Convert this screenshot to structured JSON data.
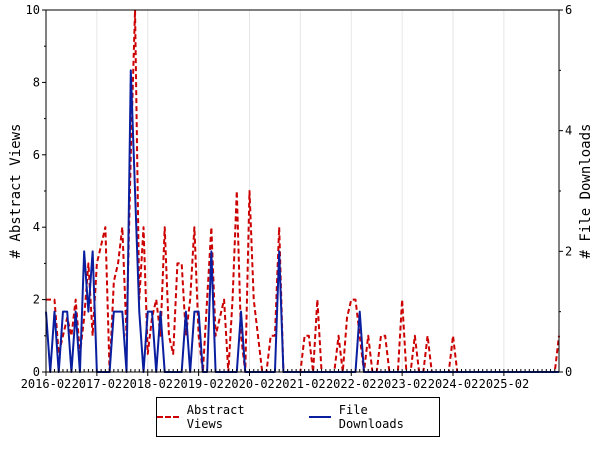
{
  "chart_data": {
    "type": "line",
    "title": "",
    "xlabel": "",
    "ylabel": "# Abstract Views",
    "y2label": "# File Downloads",
    "ylim": [
      0,
      10
    ],
    "y2lim": [
      0,
      6
    ],
    "yticks": [
      "0",
      "2",
      "4",
      "6",
      "8",
      "10"
    ],
    "y2ticks": [
      "0",
      "2",
      "4",
      "6"
    ],
    "xtick_labels": [
      "2016-02",
      "2017-02",
      "2018-02",
      "2019-02",
      "2020-02",
      "2021-02",
      "2022-02",
      "2023-02",
      "2024-02",
      "2025-02"
    ],
    "grid": "vertical",
    "legend_position": "bottom",
    "series": [
      {
        "name": "Abstract Views",
        "axis": "left",
        "color": "#cc0000",
        "style": "dashed",
        "points": [
          [
            "2016-02",
            2
          ],
          [
            "2016-03",
            2
          ],
          [
            "2016-04",
            2
          ],
          [
            "2016-05",
            0.5
          ],
          [
            "2016-06",
            1
          ],
          [
            "2016-07",
            1.5
          ],
          [
            "2016-08",
            1
          ],
          [
            "2016-09",
            2
          ],
          [
            "2016-10",
            0.5
          ],
          [
            "2016-11",
            1.5
          ],
          [
            "2016-12",
            3
          ],
          [
            "2017-01",
            1
          ],
          [
            "2017-02",
            3
          ],
          [
            "2017-03",
            3.5
          ],
          [
            "2017-04",
            4
          ],
          [
            "2017-05",
            0
          ],
          [
            "2017-06",
            2.5
          ],
          [
            "2017-07",
            3
          ],
          [
            "2017-08",
            4
          ],
          [
            "2017-09",
            1
          ],
          [
            "2017-10",
            6
          ],
          [
            "2017-11",
            10
          ],
          [
            "2017-12",
            2
          ],
          [
            "2018-01",
            4
          ],
          [
            "2018-02",
            0.5
          ],
          [
            "2018-03",
            1.5
          ],
          [
            "2018-04",
            2
          ],
          [
            "2018-05",
            1
          ],
          [
            "2018-06",
            4
          ],
          [
            "2018-07",
            1
          ],
          [
            "2018-08",
            0.5
          ],
          [
            "2018-09",
            3
          ],
          [
            "2018-10",
            3
          ],
          [
            "2018-11",
            1
          ],
          [
            "2018-12",
            2
          ],
          [
            "2019-01",
            4
          ],
          [
            "2019-02",
            1
          ],
          [
            "2019-03",
            0
          ],
          [
            "2019-04",
            2
          ],
          [
            "2019-05",
            4
          ],
          [
            "2019-06",
            1
          ],
          [
            "2019-07",
            1.5
          ],
          [
            "2019-08",
            2
          ],
          [
            "2019-09",
            0
          ],
          [
            "2019-10",
            2
          ],
          [
            "2019-11",
            5
          ],
          [
            "2019-12",
            1
          ],
          [
            "2020-01",
            0
          ],
          [
            "2020-02",
            5
          ],
          [
            "2020-03",
            2
          ],
          [
            "2020-04",
            1
          ],
          [
            "2020-05",
            0
          ],
          [
            "2020-06",
            0
          ],
          [
            "2020-07",
            1
          ],
          [
            "2020-08",
            1
          ],
          [
            "2020-09",
            4
          ],
          [
            "2020-10",
            0
          ],
          [
            "2020-11",
            0
          ],
          [
            "2020-12",
            0
          ],
          [
            "2021-01",
            0
          ],
          [
            "2021-02",
            0
          ],
          [
            "2021-03",
            1
          ],
          [
            "2021-04",
            1
          ],
          [
            "2021-05",
            0
          ],
          [
            "2021-06",
            2
          ],
          [
            "2021-07",
            0
          ],
          [
            "2021-08",
            0
          ],
          [
            "2021-09",
            0
          ],
          [
            "2021-10",
            0
          ],
          [
            "2021-11",
            1
          ],
          [
            "2021-12",
            0
          ],
          [
            "2022-01",
            1.5
          ],
          [
            "2022-02",
            2
          ],
          [
            "2022-03",
            2
          ],
          [
            "2022-04",
            1
          ],
          [
            "2022-05",
            0
          ],
          [
            "2022-06",
            1
          ],
          [
            "2022-07",
            0
          ],
          [
            "2022-08",
            0
          ],
          [
            "2022-09",
            1
          ],
          [
            "2022-10",
            1
          ],
          [
            "2022-11",
            0
          ],
          [
            "2022-12",
            0
          ],
          [
            "2023-01",
            0
          ],
          [
            "2023-02",
            2
          ],
          [
            "2023-03",
            0
          ],
          [
            "2023-04",
            0
          ],
          [
            "2023-05",
            1
          ],
          [
            "2023-06",
            0
          ],
          [
            "2023-07",
            0
          ],
          [
            "2023-08",
            1
          ],
          [
            "2023-09",
            0
          ],
          [
            "2023-10",
            0
          ],
          [
            "2023-11",
            0
          ],
          [
            "2023-12",
            0
          ],
          [
            "2024-01",
            0
          ],
          [
            "2024-02",
            1
          ],
          [
            "2024-03",
            0
          ],
          [
            "2024-04",
            0
          ],
          [
            "2024-05",
            0
          ],
          [
            "2024-06",
            0
          ],
          [
            "2024-07",
            0
          ],
          [
            "2024-08",
            0
          ],
          [
            "2024-09",
            0
          ],
          [
            "2024-10",
            0
          ],
          [
            "2024-11",
            0
          ],
          [
            "2024-12",
            0
          ],
          [
            "2025-01",
            0
          ],
          [
            "2025-02",
            0
          ],
          [
            "2025-03",
            0
          ],
          [
            "2025-04",
            0
          ],
          [
            "2025-05",
            0
          ],
          [
            "2025-06",
            0
          ],
          [
            "2025-07",
            0
          ],
          [
            "2025-08",
            0
          ],
          [
            "2025-09",
            0
          ],
          [
            "2025-10",
            0
          ],
          [
            "2025-11",
            0
          ],
          [
            "2025-12",
            0
          ],
          [
            "2026-01",
            0
          ],
          [
            "2026-02",
            0
          ],
          [
            "2026-03",
            1
          ]
        ]
      },
      {
        "name": "File Downloads",
        "axis": "right",
        "color": "#0a1fa0",
        "style": "solid",
        "points": [
          [
            "2016-02",
            1
          ],
          [
            "2016-03",
            0
          ],
          [
            "2016-04",
            1
          ],
          [
            "2016-05",
            0
          ],
          [
            "2016-06",
            1
          ],
          [
            "2016-07",
            1
          ],
          [
            "2016-08",
            0
          ],
          [
            "2016-09",
            1
          ],
          [
            "2016-10",
            0
          ],
          [
            "2016-11",
            2
          ],
          [
            "2016-12",
            1
          ],
          [
            "2017-01",
            2
          ],
          [
            "2017-02",
            0
          ],
          [
            "2017-03",
            0
          ],
          [
            "2017-04",
            0
          ],
          [
            "2017-05",
            0
          ],
          [
            "2017-06",
            1
          ],
          [
            "2017-07",
            1
          ],
          [
            "2017-08",
            1
          ],
          [
            "2017-09",
            0
          ],
          [
            "2017-10",
            5
          ],
          [
            "2017-11",
            3
          ],
          [
            "2017-12",
            1
          ],
          [
            "2018-01",
            0
          ],
          [
            "2018-02",
            1
          ],
          [
            "2018-03",
            1
          ],
          [
            "2018-04",
            0
          ],
          [
            "2018-05",
            1
          ],
          [
            "2018-06",
            0
          ],
          [
            "2018-07",
            0
          ],
          [
            "2018-08",
            0
          ],
          [
            "2018-09",
            0
          ],
          [
            "2018-10",
            0
          ],
          [
            "2018-11",
            1
          ],
          [
            "2018-12",
            0
          ],
          [
            "2019-01",
            1
          ],
          [
            "2019-02",
            1
          ],
          [
            "2019-03",
            0
          ],
          [
            "2019-04",
            0
          ],
          [
            "2019-05",
            2
          ],
          [
            "2019-06",
            0
          ],
          [
            "2019-07",
            0
          ],
          [
            "2019-08",
            0
          ],
          [
            "2019-09",
            0
          ],
          [
            "2019-10",
            0
          ],
          [
            "2019-11",
            0
          ],
          [
            "2019-12",
            1
          ],
          [
            "2020-01",
            0
          ],
          [
            "2020-02",
            0
          ],
          [
            "2020-03",
            0
          ],
          [
            "2020-04",
            0
          ],
          [
            "2020-05",
            0
          ],
          [
            "2020-06",
            0
          ],
          [
            "2020-07",
            0
          ],
          [
            "2020-08",
            0
          ],
          [
            "2020-09",
            2
          ],
          [
            "2020-10",
            0
          ],
          [
            "2020-11",
            0
          ],
          [
            "2020-12",
            0
          ],
          [
            "2021-01",
            0
          ],
          [
            "2021-02",
            0
          ],
          [
            "2021-03",
            0
          ],
          [
            "2021-04",
            0
          ],
          [
            "2021-05",
            0
          ],
          [
            "2021-06",
            0
          ],
          [
            "2021-07",
            0
          ],
          [
            "2021-08",
            0
          ],
          [
            "2021-09",
            0
          ],
          [
            "2021-10",
            0
          ],
          [
            "2021-11",
            0
          ],
          [
            "2021-12",
            0
          ],
          [
            "2022-01",
            0
          ],
          [
            "2022-02",
            0
          ],
          [
            "2022-03",
            0
          ],
          [
            "2022-04",
            1
          ],
          [
            "2022-05",
            0
          ],
          [
            "2022-06",
            0
          ],
          [
            "2022-07",
            0
          ],
          [
            "2022-08",
            0
          ],
          [
            "2022-09",
            0
          ],
          [
            "2022-10",
            0
          ],
          [
            "2022-11",
            0
          ],
          [
            "2022-12",
            0
          ],
          [
            "2023-01",
            0
          ],
          [
            "2023-02",
            0
          ],
          [
            "2023-03",
            0
          ],
          [
            "2023-04",
            0
          ],
          [
            "2023-05",
            0
          ],
          [
            "2023-06",
            0
          ],
          [
            "2023-07",
            0
          ],
          [
            "2023-08",
            0
          ],
          [
            "2023-09",
            0
          ],
          [
            "2023-10",
            0
          ],
          [
            "2023-11",
            0
          ],
          [
            "2023-12",
            0
          ],
          [
            "2024-01",
            0
          ],
          [
            "2024-02",
            0
          ],
          [
            "2024-03",
            0
          ],
          [
            "2024-04",
            0
          ],
          [
            "2024-05",
            0
          ],
          [
            "2024-06",
            0
          ],
          [
            "2024-07",
            0
          ],
          [
            "2024-08",
            0
          ],
          [
            "2024-09",
            0
          ],
          [
            "2024-10",
            0
          ],
          [
            "2024-11",
            0
          ],
          [
            "2024-12",
            0
          ],
          [
            "2025-01",
            0
          ],
          [
            "2025-02",
            0
          ],
          [
            "2025-03",
            0
          ],
          [
            "2025-04",
            0
          ],
          [
            "2025-05",
            0
          ],
          [
            "2025-06",
            0
          ],
          [
            "2025-07",
            0
          ],
          [
            "2025-08",
            0
          ],
          [
            "2025-09",
            0
          ],
          [
            "2025-10",
            0
          ],
          [
            "2025-11",
            0
          ],
          [
            "2025-12",
            0
          ],
          [
            "2026-01",
            0
          ],
          [
            "2026-02",
            0
          ],
          [
            "2026-03",
            0
          ]
        ]
      }
    ]
  }
}
